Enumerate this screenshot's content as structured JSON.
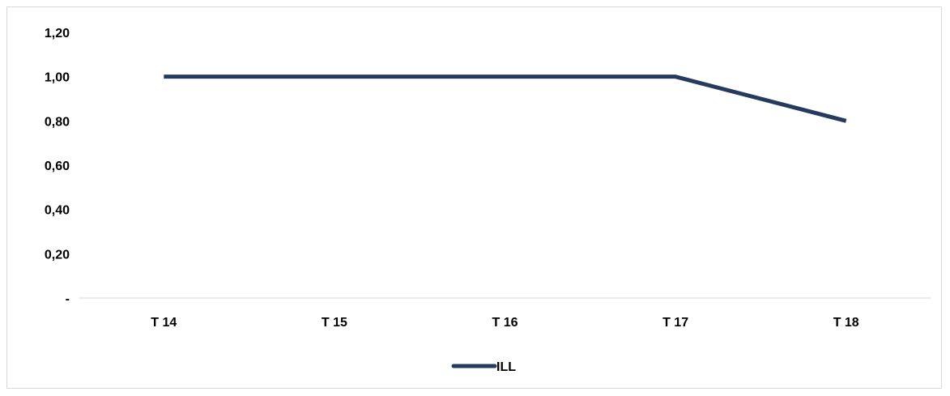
{
  "chart_data": {
    "type": "line",
    "categories": [
      "T 14",
      "T 15",
      "T 16",
      "T 17",
      "T 18"
    ],
    "series": [
      {
        "name": "ILL",
        "values": [
          1.0,
          1.0,
          1.0,
          1.0,
          0.8
        ],
        "color": "#243A5E"
      }
    ],
    "yticks": [
      {
        "value": 0,
        "label": "-"
      },
      {
        "value": 0.2,
        "label": "0,20"
      },
      {
        "value": 0.4,
        "label": "0,40"
      },
      {
        "value": 0.6,
        "label": "0,60"
      },
      {
        "value": 0.8,
        "label": "0,80"
      },
      {
        "value": 1.0,
        "label": "1,00"
      },
      {
        "value": 1.2,
        "label": "1,20"
      }
    ],
    "ylim": [
      0,
      1.2
    ],
    "grid": false,
    "legend_position": "bottom",
    "axis_color": "#d9d9d9"
  }
}
